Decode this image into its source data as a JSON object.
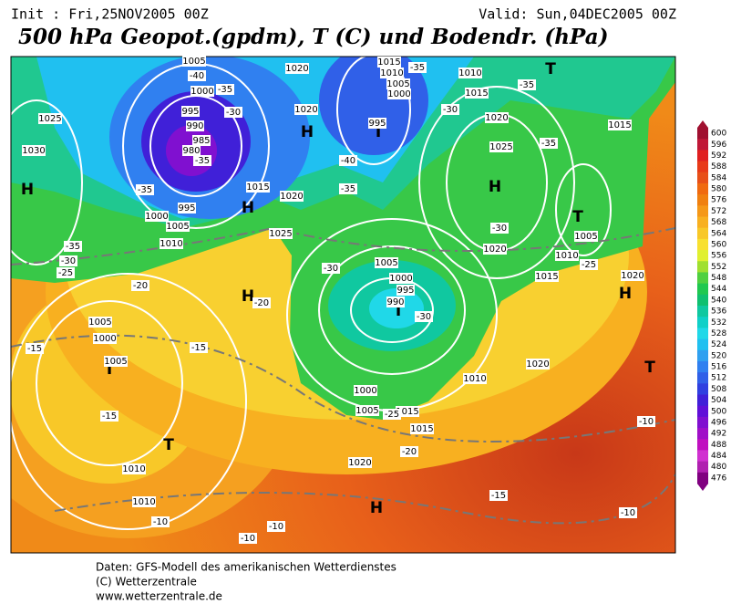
{
  "header": {
    "init": "Init : Fri,25NOV2005 00Z",
    "valid": "Valid: Sun,04DEC2005 00Z",
    "title": "500 hPa Geopot.(gpdm), T (C) und Bodendr. (hPa)"
  },
  "colorbar": {
    "labels": [
      "600",
      "596",
      "592",
      "588",
      "584",
      "580",
      "576",
      "572",
      "568",
      "564",
      "560",
      "556",
      "552",
      "548",
      "544",
      "540",
      "536",
      "532",
      "528",
      "524",
      "520",
      "516",
      "512",
      "508",
      "504",
      "500",
      "496",
      "492",
      "488",
      "484",
      "480",
      "476"
    ],
    "colors": [
      "#a01030",
      "#c01838",
      "#e02020",
      "#e83a18",
      "#e85018",
      "#f06a10",
      "#f08010",
      "#f59818",
      "#f8b020",
      "#f8c828",
      "#f8e030",
      "#e0f030",
      "#a0e030",
      "#50d040",
      "#20c850",
      "#10c070",
      "#10c8a0",
      "#10d0c8",
      "#20d8e8",
      "#20c0f0",
      "#30a0f0",
      "#3080f0",
      "#3060e8",
      "#3040e0",
      "#4020d8",
      "#6010d8",
      "#8010d0",
      "#a010c8",
      "#c010c0",
      "#d030d0",
      "#b020b0",
      "#800080"
    ]
  },
  "map": {
    "labels": [
      "H",
      "H",
      "H",
      "H",
      "H",
      "H",
      "H",
      "T",
      "T",
      "T",
      "T",
      "T",
      "T",
      "T",
      "1025",
      "1030",
      "1005",
      "1000",
      "995",
      "990",
      "985",
      "980",
      "995",
      "1000",
      "1005",
      "1010",
      "1015",
      "1020",
      "1025",
      "1020",
      "1020",
      "1015",
      "1010",
      "1005",
      "1000",
      "995",
      "1020",
      "1025",
      "1020",
      "1015",
      "1010",
      "1005",
      "1015",
      "1020",
      "1005",
      "1000",
      "995",
      "990",
      "1000",
      "1005",
      "1010",
      "1015",
      "1015",
      "1020",
      "1020",
      "1010",
      "1005",
      "1000",
      "1005",
      "1010",
      "1015",
      "1010",
      "-40",
      "-35",
      "-30",
      "-35",
      "-35",
      "-35",
      "-30",
      "-25",
      "-20",
      "-20",
      "-15",
      "-15",
      "-15",
      "-10",
      "-10",
      "-10",
      "-35",
      "-35",
      "-35",
      "-30",
      "-40",
      "-35",
      "-30",
      "-30",
      "-25",
      "-30",
      "-25",
      "-20",
      "-15",
      "-10",
      "-10"
    ]
  },
  "footer": {
    "line1": "Daten: GFS-Modell des amerikanischen Wetterdienstes",
    "line2": "(C) Wetterzentrale",
    "line3": "www.wetterzentrale.de"
  }
}
